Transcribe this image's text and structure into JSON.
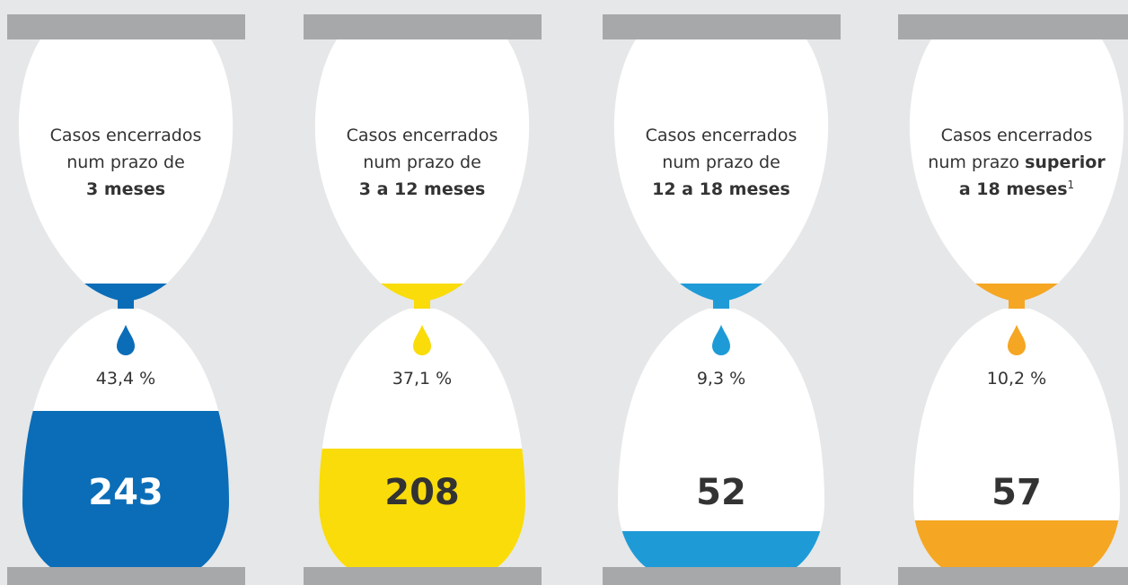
{
  "items": [
    {
      "color": "#0b6db7",
      "count_color": "#ffffff",
      "lines": [
        [
          {
            "text": "Casos encerrados"
          }
        ],
        [
          {
            "text": "num prazo de"
          }
        ],
        [
          {
            "text": "3 meses",
            "bold": true
          }
        ]
      ],
      "percent": "43,4 %",
      "count": "243"
    },
    {
      "color": "#f9dc0a",
      "count_color": "#333333",
      "lines": [
        [
          {
            "text": "Casos encerrados"
          }
        ],
        [
          {
            "text": "num prazo de"
          }
        ],
        [
          {
            "text": "3 a 12 meses",
            "bold": true
          }
        ]
      ],
      "percent": "37,1 %",
      "count": "208"
    },
    {
      "color": "#1e9bd7",
      "count_color": "#333333",
      "lines": [
        [
          {
            "text": "Casos encerrados"
          }
        ],
        [
          {
            "text": "num prazo de"
          }
        ],
        [
          {
            "text": "12 a 18 meses",
            "bold": true
          }
        ]
      ],
      "percent": "9,3 %",
      "count": "52"
    },
    {
      "color": "#f5a623",
      "count_color": "#333333",
      "lines": [
        [
          {
            "text": "Casos encerrados"
          }
        ],
        [
          {
            "text": "num prazo "
          },
          {
            "text": "superior",
            "bold": true
          }
        ],
        [
          {
            "text": "a 18 meses",
            "bold": true
          },
          {
            "text": "1",
            "sup": true
          }
        ]
      ],
      "percent": "10,2 %",
      "count": "57"
    }
  ]
}
